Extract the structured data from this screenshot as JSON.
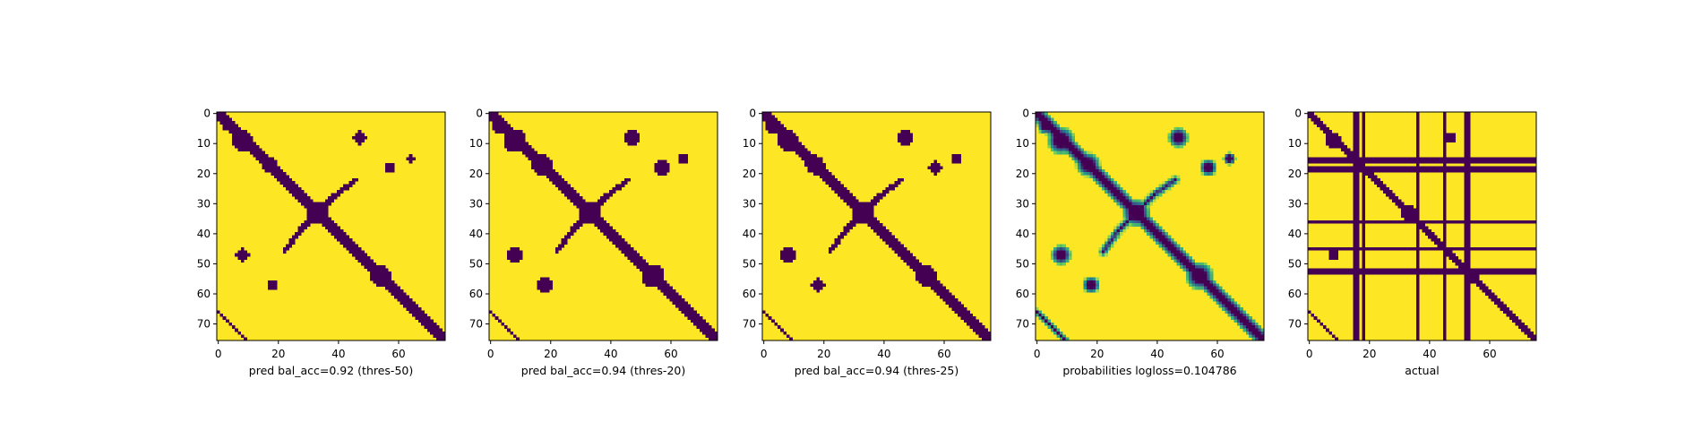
{
  "colors": {
    "low": "#440154",
    "high": "#fde725",
    "mid": "#21918c",
    "background": "#ffffff"
  },
  "chart_data": [
    {
      "type": "heatmap",
      "xlabel": "pred bal_acc=0.92 (thres-50)",
      "xticks": [
        0,
        20,
        40,
        60
      ],
      "yticks": [
        0,
        10,
        20,
        30,
        40,
        50,
        60,
        70
      ],
      "xlim": [
        0,
        76
      ],
      "ylim": [
        76,
        0
      ],
      "grid": false,
      "encoding": "binary",
      "diagonal_band_halfwidth": 1.5,
      "blobs": [
        [
          9,
          8,
          3.2
        ],
        [
          4,
          3,
          2.0
        ],
        [
          17,
          17,
          2.8
        ],
        [
          33,
          33,
          3.2
        ],
        [
          54,
          54,
          3.2
        ],
        [
          47,
          8,
          2.2
        ],
        [
          57,
          18,
          1.8
        ],
        [
          8,
          47,
          2.2
        ],
        [
          18,
          57,
          1.8
        ],
        [
          15,
          64,
          1.2
        ]
      ],
      "arcs": [
        [
          [
            22,
            46
          ],
          [
            27,
            39
          ],
          [
            33,
            33
          ]
        ],
        [
          [
            46,
            22
          ],
          [
            39,
            27
          ],
          [
            33,
            33
          ]
        ]
      ],
      "short_diagonals": [
        [
          [
            62,
            61
          ],
          [
            70,
            70
          ]
        ],
        [
          [
            66,
            0
          ],
          [
            76,
            10
          ]
        ]
      ]
    },
    {
      "type": "heatmap",
      "xlabel": "pred bal_acc=0.94 (thres-20)",
      "xticks": [
        0,
        20,
        40,
        60
      ],
      "yticks": [
        0,
        10,
        20,
        30,
        40,
        50,
        60,
        70
      ],
      "xlim": [
        0,
        76
      ],
      "ylim": [
        76,
        0
      ],
      "grid": false,
      "encoding": "binary",
      "diagonal_band_halfwidth": 2.2,
      "blobs": [
        [
          9,
          8,
          3.8
        ],
        [
          4,
          3,
          2.5
        ],
        [
          17,
          17,
          3.3
        ],
        [
          33,
          33,
          3.8
        ],
        [
          54,
          54,
          3.8
        ],
        [
          47,
          8,
          2.8
        ],
        [
          57,
          18,
          2.4
        ],
        [
          8,
          47,
          2.8
        ],
        [
          18,
          57,
          2.4
        ],
        [
          15,
          64,
          1.8
        ]
      ],
      "arcs": [
        [
          [
            22,
            46
          ],
          [
            27,
            39
          ],
          [
            33,
            33
          ]
        ],
        [
          [
            46,
            22
          ],
          [
            39,
            27
          ],
          [
            33,
            33
          ]
        ]
      ],
      "short_diagonals": [
        [
          [
            62,
            61
          ],
          [
            70,
            70
          ]
        ],
        [
          [
            66,
            0
          ],
          [
            76,
            10
          ]
        ]
      ]
    },
    {
      "type": "heatmap",
      "xlabel": "pred bal_acc=0.94 (thres-25)",
      "xticks": [
        0,
        20,
        40,
        60
      ],
      "yticks": [
        0,
        10,
        20,
        30,
        40,
        50,
        60,
        70
      ],
      "xlim": [
        0,
        76
      ],
      "ylim": [
        76,
        0
      ],
      "grid": false,
      "encoding": "binary",
      "diagonal_band_halfwidth": 2.0,
      "blobs": [
        [
          9,
          8,
          3.6
        ],
        [
          4,
          3,
          2.3
        ],
        [
          17,
          17,
          3.1
        ],
        [
          33,
          33,
          3.6
        ],
        [
          54,
          54,
          3.6
        ],
        [
          47,
          8,
          2.6
        ],
        [
          57,
          18,
          2.2
        ],
        [
          8,
          47,
          2.6
        ],
        [
          18,
          57,
          2.2
        ],
        [
          15,
          64,
          1.6
        ]
      ],
      "arcs": [
        [
          [
            22,
            46
          ],
          [
            27,
            39
          ],
          [
            33,
            33
          ]
        ],
        [
          [
            46,
            22
          ],
          [
            39,
            27
          ],
          [
            33,
            33
          ]
        ]
      ],
      "short_diagonals": [
        [
          [
            62,
            61
          ],
          [
            70,
            70
          ]
        ],
        [
          [
            66,
            0
          ],
          [
            76,
            10
          ]
        ]
      ]
    },
    {
      "type": "heatmap",
      "xlabel": "probabilities logloss=0.104786",
      "xticks": [
        0,
        20,
        40,
        60
      ],
      "yticks": [
        0,
        10,
        20,
        30,
        40,
        50,
        60,
        70
      ],
      "xlim": [
        0,
        76
      ],
      "ylim": [
        76,
        0
      ],
      "grid": false,
      "encoding": "continuous",
      "diagonal_band_halfwidth": 2.0,
      "blobs": [
        [
          9,
          8,
          3.6
        ],
        [
          4,
          3,
          2.3
        ],
        [
          17,
          17,
          3.1
        ],
        [
          33,
          33,
          3.6
        ],
        [
          54,
          54,
          3.6
        ],
        [
          47,
          8,
          2.6
        ],
        [
          57,
          18,
          2.2
        ],
        [
          8,
          47,
          2.6
        ],
        [
          18,
          57,
          2.2
        ],
        [
          15,
          64,
          1.6
        ]
      ],
      "arcs": [
        [
          [
            22,
            46
          ],
          [
            27,
            39
          ],
          [
            33,
            33
          ]
        ],
        [
          [
            46,
            22
          ],
          [
            39,
            27
          ],
          [
            33,
            33
          ]
        ]
      ],
      "short_diagonals": [
        [
          [
            62,
            61
          ],
          [
            70,
            70
          ]
        ],
        [
          [
            66,
            0
          ],
          [
            76,
            10
          ]
        ]
      ]
    },
    {
      "type": "heatmap",
      "xlabel": "actual",
      "xticks": [
        0,
        20,
        40,
        60
      ],
      "yticks": [
        0,
        10,
        20,
        30,
        40,
        50,
        60,
        70
      ],
      "xlim": [
        0,
        76
      ],
      "ylim": [
        76,
        0
      ],
      "grid": false,
      "encoding": "binary",
      "diagonal_band_halfwidth": 1.3,
      "blobs": [
        [
          9,
          8,
          2.6
        ],
        [
          33,
          33,
          2.8
        ],
        [
          54,
          54,
          2.8
        ],
        [
          47,
          8,
          1.8
        ],
        [
          8,
          47,
          1.8
        ]
      ],
      "arcs": [],
      "short_diagonals": [
        [
          [
            62,
            61
          ],
          [
            70,
            70
          ]
        ],
        [
          [
            66,
            0
          ],
          [
            76,
            10
          ]
        ]
      ],
      "masked_rows": [
        15,
        16,
        18,
        19,
        36,
        45,
        52,
        53
      ],
      "masked_cols": [
        15,
        16,
        18,
        36,
        45,
        52,
        53
      ]
    }
  ]
}
